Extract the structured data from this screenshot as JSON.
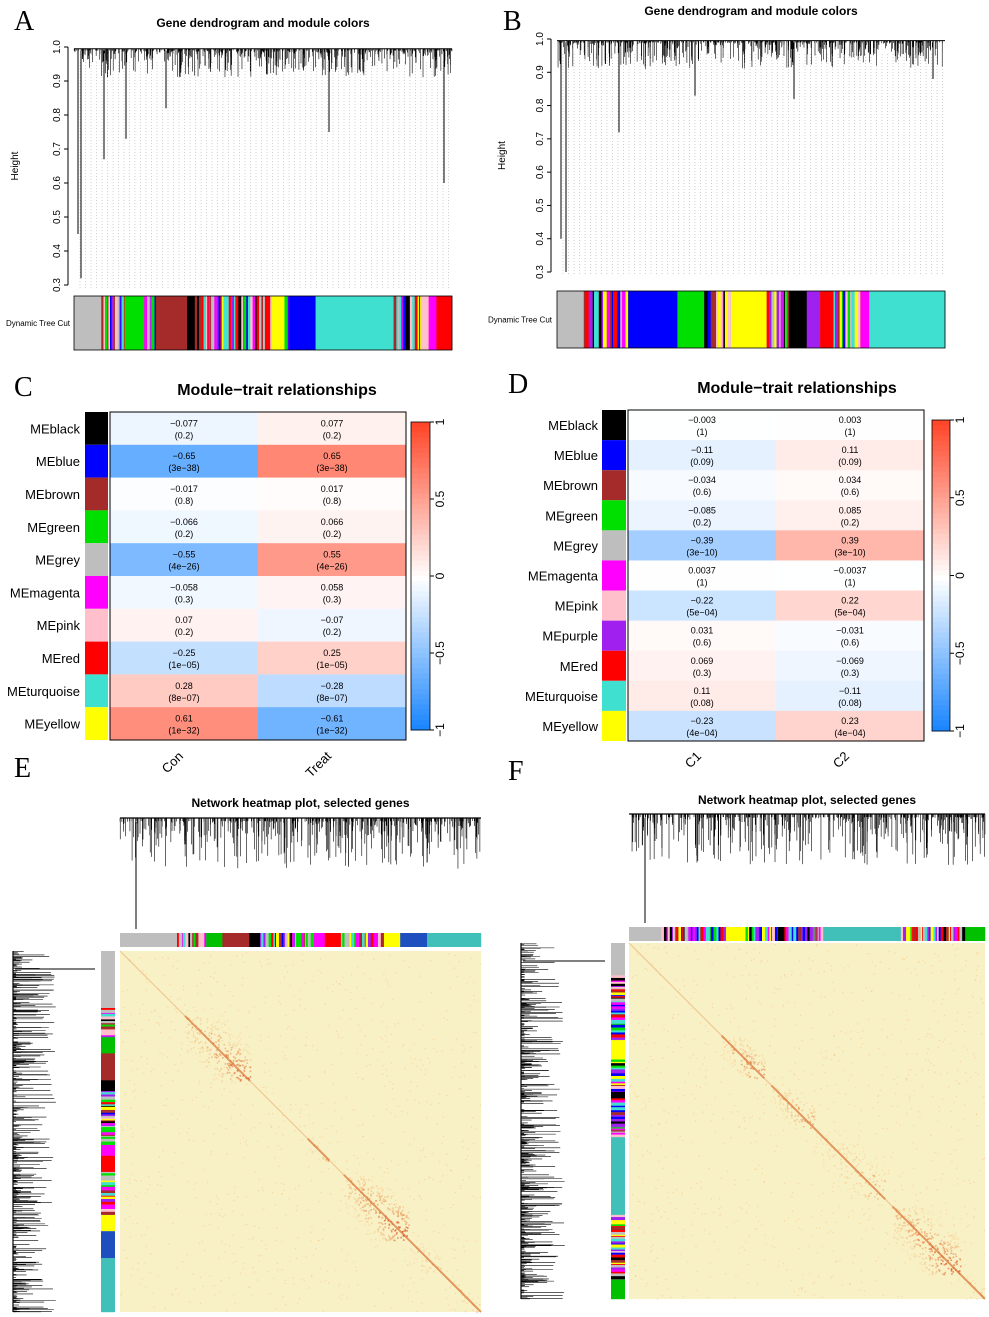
{
  "chart_data": [
    {
      "panel": "A",
      "type": "dendrogram",
      "title": "Gene dendrogram and module colors",
      "ylabel": "Height",
      "ylim": [
        0.3,
        1.0
      ],
      "yticks": [
        "0.3",
        "0.4",
        "0.5",
        "0.6",
        "0.7",
        "0.8",
        "0.9",
        "1.0"
      ],
      "color_row_label": "Dynamic Tree Cut",
      "color_segments": [
        {
          "color": "#bebebe",
          "w": 7
        },
        {
          "color": "mixed",
          "w": 6
        },
        {
          "color": "#00e000",
          "w": 5
        },
        {
          "color": "mixed",
          "w": 3
        },
        {
          "color": "#a52a2a",
          "w": 8
        },
        {
          "color": "#000000",
          "w": 2
        },
        {
          "color": "mixed",
          "w": 20
        },
        {
          "color": "#ffff00",
          "w": 3
        },
        {
          "color": "mixed",
          "w": 1
        },
        {
          "color": "#0000ff",
          "w": 7
        },
        {
          "color": "#40e0d0",
          "w": 20
        },
        {
          "color": "mixed",
          "w": 7
        },
        {
          "color": "#ffc0cb",
          "w": 2
        },
        {
          "color": "#ff00ff",
          "w": 2
        },
        {
          "color": "#ff0000",
          "w": 4
        }
      ]
    },
    {
      "panel": "B",
      "type": "dendrogram",
      "title": "Gene dendrogram and module colors",
      "ylabel": "Height",
      "ylim": [
        0.3,
        1.0
      ],
      "yticks": [
        "0.3",
        "0.4",
        "0.5",
        "0.6",
        "0.7",
        "0.8",
        "0.9",
        "1.0"
      ],
      "color_row_label": "Dynamic Tree Cut",
      "color_segments": [
        {
          "color": "#bebebe",
          "w": 6
        },
        {
          "color": "mixed",
          "w": 10
        },
        {
          "color": "#0000ff",
          "w": 11
        },
        {
          "color": "#00e000",
          "w": 6
        },
        {
          "color": "mixed",
          "w": 6
        },
        {
          "color": "#ffff00",
          "w": 8
        },
        {
          "color": "mixed",
          "w": 5
        },
        {
          "color": "#000000",
          "w": 4
        },
        {
          "color": "#a020f0",
          "w": 3
        },
        {
          "color": "#ff0000",
          "w": 3
        },
        {
          "color": "mixed",
          "w": 6
        },
        {
          "color": "#ff00ff",
          "w": 2
        },
        {
          "color": "#40e0d0",
          "w": 17
        }
      ]
    },
    {
      "panel": "C",
      "type": "heatmap",
      "title": "Module−trait relationships",
      "columns": [
        "Con",
        "Treat"
      ],
      "rows": [
        {
          "name": "MEblack",
          "color": "#000000",
          "values": [
            -0.077,
            0.077
          ],
          "labels": [
            "−0.077",
            "0.077"
          ],
          "p": [
            "(0.2)",
            "(0.2)"
          ]
        },
        {
          "name": "MEblue",
          "color": "#0000ff",
          "values": [
            -0.65,
            0.65
          ],
          "labels": [
            "−0.65",
            "0.65"
          ],
          "p": [
            "(3e−38)",
            "(3e−38)"
          ]
        },
        {
          "name": "MEbrown",
          "color": "#a52a2a",
          "values": [
            -0.017,
            0.017
          ],
          "labels": [
            "−0.017",
            "0.017"
          ],
          "p": [
            "(0.8)",
            "(0.8)"
          ]
        },
        {
          "name": "MEgreen",
          "color": "#00e000",
          "values": [
            -0.066,
            0.066
          ],
          "labels": [
            "−0.066",
            "0.066"
          ],
          "p": [
            "(0.2)",
            "(0.2)"
          ]
        },
        {
          "name": "MEgrey",
          "color": "#bebebe",
          "values": [
            -0.55,
            0.55
          ],
          "labels": [
            "−0.55",
            "0.55"
          ],
          "p": [
            "(4e−26)",
            "(4e−26)"
          ]
        },
        {
          "name": "MEmagenta",
          "color": "#ff00ff",
          "values": [
            -0.058,
            0.058
          ],
          "labels": [
            "−0.058",
            "0.058"
          ],
          "p": [
            "(0.3)",
            "(0.3)"
          ]
        },
        {
          "name": "MEpink",
          "color": "#ffc0cb",
          "values": [
            0.07,
            -0.07
          ],
          "labels": [
            "0.07",
            "−0.07"
          ],
          "p": [
            "(0.2)",
            "(0.2)"
          ]
        },
        {
          "name": "MEred",
          "color": "#ff0000",
          "values": [
            -0.25,
            0.25
          ],
          "labels": [
            "−0.25",
            "0.25"
          ],
          "p": [
            "(1e−05)",
            "(1e−05)"
          ]
        },
        {
          "name": "MEturquoise",
          "color": "#40e0d0",
          "values": [
            0.28,
            -0.28
          ],
          "labels": [
            "0.28",
            "−0.28"
          ],
          "p": [
            "(8e−07)",
            "(8e−07)"
          ]
        },
        {
          "name": "MEyellow",
          "color": "#ffff00",
          "values": [
            0.61,
            -0.61
          ],
          "labels": [
            "0.61",
            "−0.61"
          ],
          "p": [
            "(1e−32)",
            "(1e−32)"
          ]
        }
      ],
      "legend_ticks": [
        1,
        0.5,
        0,
        -0.5,
        -1
      ],
      "legend_labels": [
        "1",
        "0.5",
        "0",
        "−0.5",
        "−1"
      ]
    },
    {
      "panel": "D",
      "type": "heatmap",
      "title": "Module−trait relationships",
      "columns": [
        "C1",
        "C2"
      ],
      "rows": [
        {
          "name": "MEblack",
          "color": "#000000",
          "values": [
            -0.003,
            0.003
          ],
          "labels": [
            "−0.003",
            "0.003"
          ],
          "p": [
            "(1)",
            "(1)"
          ]
        },
        {
          "name": "MEblue",
          "color": "#0000ff",
          "values": [
            -0.11,
            0.11
          ],
          "labels": [
            "−0.11",
            "0.11"
          ],
          "p": [
            "(0.09)",
            "(0.09)"
          ]
        },
        {
          "name": "MEbrown",
          "color": "#a52a2a",
          "values": [
            -0.034,
            0.034
          ],
          "labels": [
            "−0.034",
            "0.034"
          ],
          "p": [
            "(0.6)",
            "(0.6)"
          ]
        },
        {
          "name": "MEgreen",
          "color": "#00e000",
          "values": [
            -0.085,
            0.085
          ],
          "labels": [
            "−0.085",
            "0.085"
          ],
          "p": [
            "(0.2)",
            "(0.2)"
          ]
        },
        {
          "name": "MEgrey",
          "color": "#bebebe",
          "values": [
            -0.39,
            0.39
          ],
          "labels": [
            "−0.39",
            "0.39"
          ],
          "p": [
            "(3e−10)",
            "(3e−10)"
          ]
        },
        {
          "name": "MEmagenta",
          "color": "#ff00ff",
          "values": [
            0.0037,
            -0.0037
          ],
          "labels": [
            "0.0037",
            "−0.0037"
          ],
          "p": [
            "(1)",
            "(1)"
          ]
        },
        {
          "name": "MEpink",
          "color": "#ffc0cb",
          "values": [
            -0.22,
            0.22
          ],
          "labels": [
            "−0.22",
            "0.22"
          ],
          "p": [
            "(5e−04)",
            "(5e−04)"
          ]
        },
        {
          "name": "MEpurple",
          "color": "#a020f0",
          "values": [
            0.031,
            -0.031
          ],
          "labels": [
            "0.031",
            "−0.031"
          ],
          "p": [
            "(0.6)",
            "(0.6)"
          ]
        },
        {
          "name": "MEred",
          "color": "#ff0000",
          "values": [
            0.069,
            -0.069
          ],
          "labels": [
            "0.069",
            "−0.069"
          ],
          "p": [
            "(0.3)",
            "(0.3)"
          ]
        },
        {
          "name": "MEturquoise",
          "color": "#40e0d0",
          "values": [
            0.11,
            -0.11
          ],
          "labels": [
            "0.11",
            "−0.11"
          ],
          "p": [
            "(0.08)",
            "(0.08)"
          ]
        },
        {
          "name": "MEyellow",
          "color": "#ffff00",
          "values": [
            -0.23,
            0.23
          ],
          "labels": [
            "−0.23",
            "0.23"
          ],
          "p": [
            "(4e−04)",
            "(4e−04)"
          ]
        }
      ],
      "legend_ticks": [
        1,
        0.5,
        0,
        -0.5,
        -1
      ],
      "legend_labels": [
        "1",
        "0.5",
        "0",
        "−0.5",
        "−1"
      ]
    },
    {
      "panel": "E",
      "type": "heatmap",
      "title": "Network heatmap plot, selected genes",
      "color_segments": [
        {
          "color": "#bebebe",
          "w": 10
        },
        {
          "color": "mixed",
          "w": 6
        },
        {
          "color": "#00c000",
          "w": 3
        },
        {
          "color": "#a52a2a",
          "w": 5
        },
        {
          "color": "#000000",
          "w": 2
        },
        {
          "color": "mixed",
          "w": 10
        },
        {
          "color": "#ff00ff",
          "w": 2
        },
        {
          "color": "#ff0000",
          "w": 3
        },
        {
          "color": "mixed",
          "w": 8
        },
        {
          "color": "#ffff00",
          "w": 3
        },
        {
          "color": "#1f4fbf",
          "w": 5
        },
        {
          "color": "#40c0b8",
          "w": 10
        }
      ],
      "blocks": [
        {
          "start": 0.18,
          "end": 0.36,
          "strength": 0.85
        },
        {
          "start": 0.52,
          "end": 0.58,
          "strength": 0.6
        },
        {
          "start": 0.62,
          "end": 0.8,
          "strength": 0.95
        },
        {
          "start": 0.8,
          "end": 0.9,
          "strength": 0.5
        },
        {
          "start": 0.9,
          "end": 1.0,
          "strength": 0.4
        }
      ]
    },
    {
      "panel": "F",
      "type": "heatmap",
      "title": "Network heatmap plot, selected genes",
      "color_segments": [
        {
          "color": "#bebebe",
          "w": 5
        },
        {
          "color": "mixed",
          "w": 10
        },
        {
          "color": "#ffff00",
          "w": 3
        },
        {
          "color": "mixed",
          "w": 5
        },
        {
          "color": "#000000",
          "w": 1
        },
        {
          "color": "mixed",
          "w": 6
        },
        {
          "color": "#40c0b8",
          "w": 12
        },
        {
          "color": "mixed",
          "w": 10
        },
        {
          "color": "#00c000",
          "w": 3
        }
      ],
      "blocks": [
        {
          "start": 0.26,
          "end": 0.38,
          "strength": 0.85
        },
        {
          "start": 0.4,
          "end": 0.52,
          "strength": 0.7
        },
        {
          "start": 0.52,
          "end": 0.72,
          "strength": 0.45
        },
        {
          "start": 0.74,
          "end": 0.93,
          "strength": 0.95
        },
        {
          "start": 0.93,
          "end": 1.0,
          "strength": 0.5
        }
      ]
    }
  ],
  "panel_letters": [
    "A",
    "B",
    "C",
    "D",
    "E",
    "F"
  ]
}
